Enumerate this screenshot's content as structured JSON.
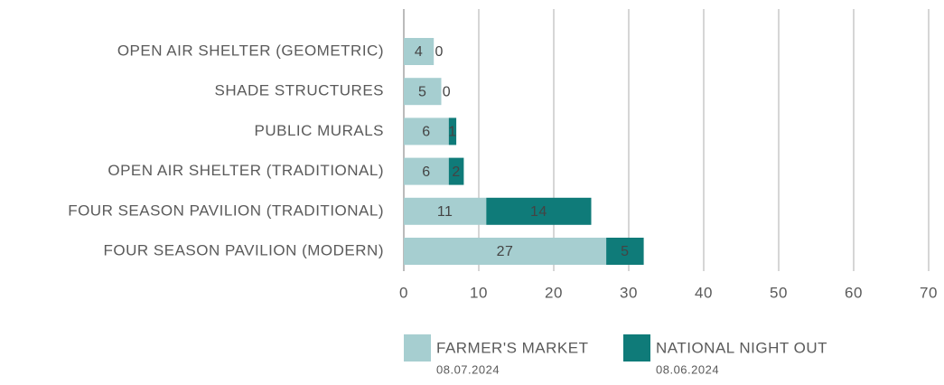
{
  "chart_data": {
    "type": "stacked-barh",
    "categories": [
      "OPEN AIR SHELTER (GEOMETRIC)",
      "SHADE STRUCTURES",
      "PUBLIC MURALS",
      "OPEN AIR SHELTER (TRADITIONAL)",
      "FOUR SEASON PAVILION (TRADITIONAL)",
      "FOUR SEASON PAVILION (MODERN)"
    ],
    "series": [
      {
        "name": "FARMER'S MARKET",
        "date": "08.07.2024",
        "color": "#a6ced0",
        "values": [
          4,
          5,
          6,
          6,
          11,
          27
        ]
      },
      {
        "name": "NATIONAL NIGHT OUT",
        "date": "08.06.2024",
        "color": "#0f7b79",
        "values": [
          0,
          0,
          1,
          2,
          14,
          5
        ]
      }
    ],
    "xlim": [
      0,
      70
    ],
    "xticks": [
      0,
      10,
      20,
      30,
      40,
      50,
      60,
      70
    ],
    "grid": true,
    "legend": "bottom"
  }
}
